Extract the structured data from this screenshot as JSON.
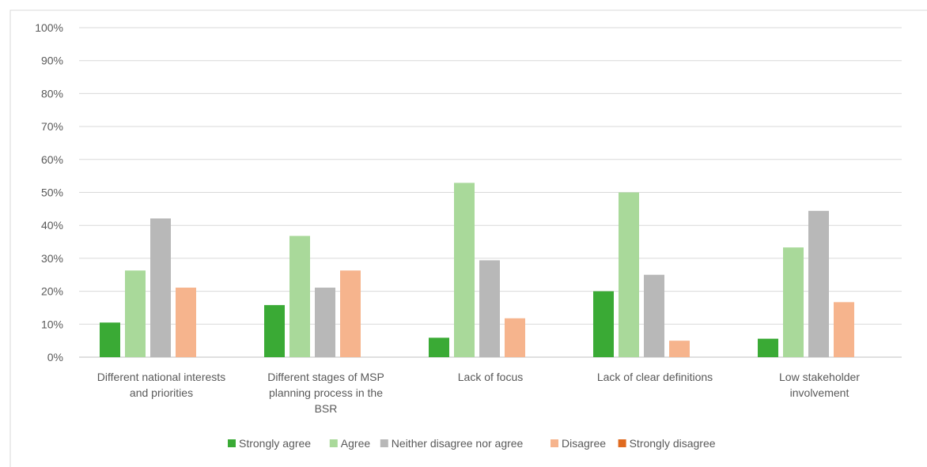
{
  "chart_data": {
    "type": "bar",
    "title": "",
    "xlabel": "",
    "ylabel": "",
    "ylim": [
      0,
      100
    ],
    "y_ticks": [
      "0%",
      "10%",
      "20%",
      "30%",
      "40%",
      "50%",
      "60%",
      "70%",
      "80%",
      "90%",
      "100%"
    ],
    "grid": true,
    "legend_position": "bottom",
    "categories": [
      [
        "Different national interests",
        "and priorities"
      ],
      [
        "Different stages of MSP",
        "planning process in the",
        "BSR"
      ],
      [
        "Lack of focus"
      ],
      [
        "Lack of clear definitions"
      ],
      [
        "Low stakeholder",
        "involvement"
      ]
    ],
    "series": [
      {
        "name": "Strongly agree",
        "color": "#3aaa35",
        "values": [
          10.5,
          15.8,
          5.9,
          20,
          5.6
        ]
      },
      {
        "name": "Agree",
        "color": "#a9d99a",
        "values": [
          26.3,
          36.8,
          52.9,
          50,
          33.3
        ]
      },
      {
        "name": "Neither disagree nor agree",
        "color": "#b8b8b8",
        "values": [
          42.1,
          21.1,
          29.4,
          25,
          44.4
        ]
      },
      {
        "name": "Disagree",
        "color": "#f6b48d",
        "values": [
          21.1,
          26.3,
          11.8,
          5,
          16.7
        ]
      },
      {
        "name": "Strongly disagree",
        "color": "#e06a1f",
        "values": [
          0,
          0,
          0,
          0,
          0
        ]
      }
    ],
    "colors": {
      "grid": "#d9d9d9",
      "axis": "#bfbfbf",
      "text": "#595959",
      "frame": "#d9d9d9"
    }
  }
}
